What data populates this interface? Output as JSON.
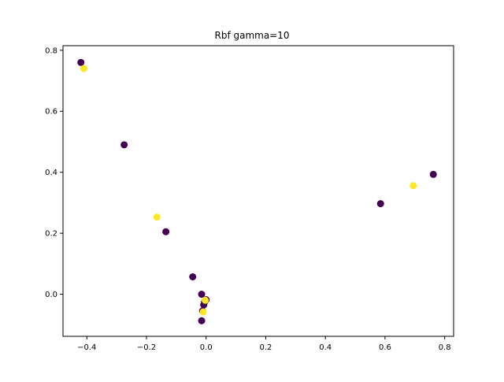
{
  "chart_data": {
    "type": "scatter",
    "title": "Rbf gamma=10",
    "xlabel": "",
    "ylabel": "",
    "xlim": [
      -0.48,
      0.83
    ],
    "ylim": [
      -0.138,
      0.815
    ],
    "xticks": [
      -0.4,
      -0.2,
      0.0,
      0.2,
      0.4,
      0.6,
      0.8
    ],
    "xtick_labels": [
      "−0.4",
      "−0.2",
      "0.0",
      "0.2",
      "0.4",
      "0.6",
      "0.8"
    ],
    "yticks": [
      0.0,
      0.2,
      0.4,
      0.6,
      0.8
    ],
    "ytick_labels": [
      "0.0",
      "0.2",
      "0.4",
      "0.6",
      "0.8"
    ],
    "grid": false,
    "legend": "none",
    "colors": {
      "class_0": "#440154",
      "class_1": "#fde725"
    },
    "points": [
      {
        "x": -0.42,
        "y": 0.76,
        "class": 0
      },
      {
        "x": -0.41,
        "y": 0.74,
        "class": 1
      },
      {
        "x": -0.275,
        "y": 0.49,
        "class": 0
      },
      {
        "x": -0.165,
        "y": 0.253,
        "class": 1
      },
      {
        "x": -0.135,
        "y": 0.205,
        "class": 0
      },
      {
        "x": -0.045,
        "y": 0.057,
        "class": 0
      },
      {
        "x": -0.015,
        "y": 0.0,
        "class": 0
      },
      {
        "x": -0.015,
        "y": -0.087,
        "class": 0
      },
      {
        "x": -0.012,
        "y": -0.055,
        "class": 0
      },
      {
        "x": -0.008,
        "y": -0.035,
        "class": 0
      },
      {
        "x": -0.005,
        "y": -0.025,
        "class": 0
      },
      {
        "x": 0.0,
        "y": -0.018,
        "class": 0
      },
      {
        "x": -0.003,
        "y": -0.02,
        "class": 1
      },
      {
        "x": -0.01,
        "y": -0.058,
        "class": 1
      },
      {
        "x": 0.585,
        "y": 0.297,
        "class": 0
      },
      {
        "x": 0.695,
        "y": 0.356,
        "class": 1
      },
      {
        "x": 0.762,
        "y": 0.393,
        "class": 0
      }
    ]
  }
}
